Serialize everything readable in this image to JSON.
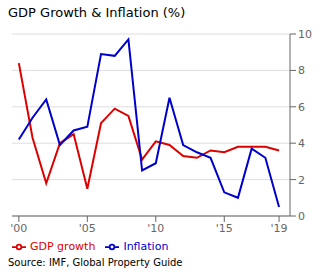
{
  "chart_data": {
    "type": "line",
    "title": "GDP Growth & Inflation (%)",
    "annotations": [
      "Source: IMF, Global Property Guide"
    ],
    "x": [
      2000,
      2001,
      2002,
      2003,
      2004,
      2005,
      2006,
      2007,
      2008,
      2009,
      2010,
      2011,
      2012,
      2013,
      2014,
      2015,
      2016,
      2017,
      2018,
      2019
    ],
    "series": [
      {
        "name": "GDP growth",
        "color": "#dd0000",
        "values": [
          8.4,
          4.3,
          1.8,
          4.0,
          4.5,
          1.5,
          5.1,
          5.9,
          5.5,
          3.1,
          4.1,
          3.9,
          3.3,
          3.2,
          3.6,
          3.5,
          3.8,
          3.8,
          3.8,
          3.6
        ]
      },
      {
        "name": "Inflation",
        "color": "#0000cc",
        "values": [
          4.2,
          5.4,
          6.4,
          3.9,
          4.7,
          4.9,
          8.9,
          8.8,
          9.7,
          2.5,
          2.9,
          6.5,
          3.9,
          3.5,
          3.2,
          1.3,
          1.0,
          3.7,
          3.2,
          0.5
        ]
      }
    ],
    "xlim": [
      1999.5,
      2019.8
    ],
    "xticks": [
      {
        "value": 2000,
        "label": "'00"
      },
      {
        "value": 2005,
        "label": "'05"
      },
      {
        "value": 2010,
        "label": "'10"
      },
      {
        "value": 2015,
        "label": "'15"
      },
      {
        "value": 2019,
        "label": "'19"
      }
    ],
    "ylim": [
      0,
      10
    ],
    "yticks": [
      0,
      2,
      4,
      6,
      8,
      10
    ],
    "grid": "y",
    "legend": "bottom"
  }
}
